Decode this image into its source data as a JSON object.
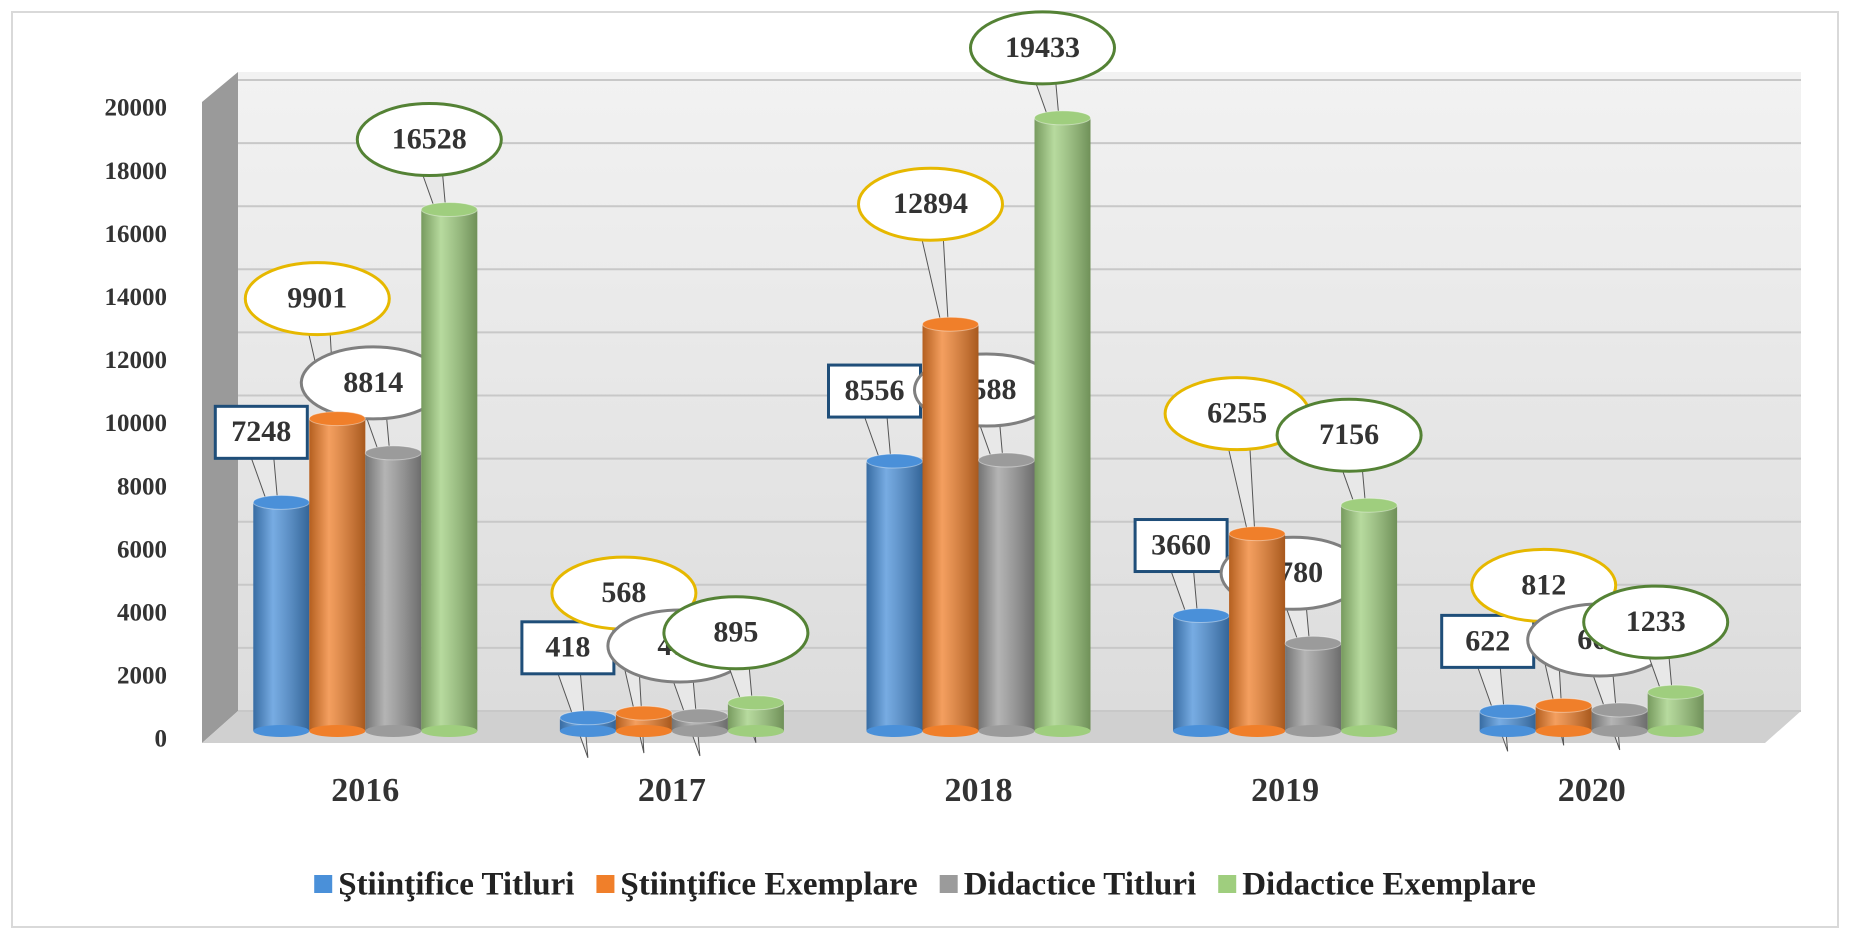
{
  "chart_data": {
    "type": "bar3d",
    "categories": [
      "2016",
      "2017",
      "2018",
      "2019",
      "2020"
    ],
    "series": [
      {
        "name": "Ştiinţifice Titluri",
        "color": "#4a90d9",
        "values": [
          7248,
          418,
          8556,
          3660,
          622
        ]
      },
      {
        "name": "Ştiinţifice Exemplare",
        "color": "#f07f2a",
        "values": [
          9901,
          568,
          12894,
          6255,
          812
        ]
      },
      {
        "name": "Didactice Titluri",
        "color": "#9b9b9b",
        "values": [
          8814,
          476,
          8588,
          2780,
          667
        ]
      },
      {
        "name": "Didactice Exemplare",
        "color": "#9fce7e",
        "values": [
          16528,
          895,
          19433,
          7156,
          1233
        ]
      }
    ],
    "ylim": [
      0,
      20000
    ],
    "yticks": [
      0,
      2000,
      4000,
      6000,
      8000,
      10000,
      12000,
      14000,
      16000,
      18000,
      20000
    ],
    "grid": true,
    "legend": "bottom"
  }
}
